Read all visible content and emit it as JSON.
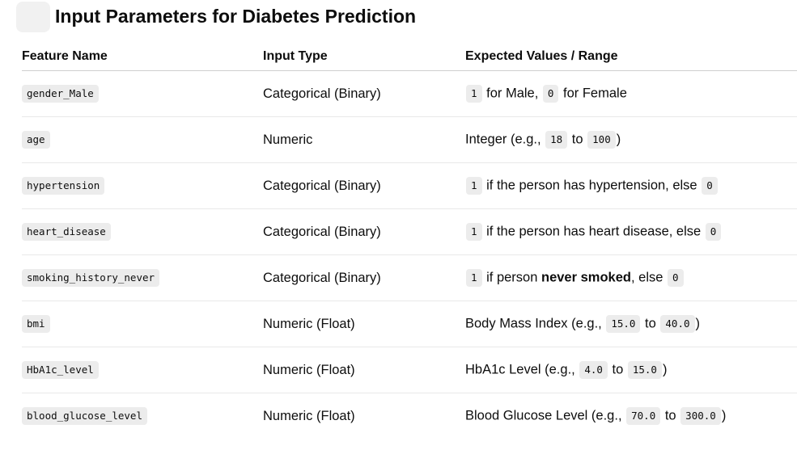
{
  "title": "Input Parameters for Diabetes Prediction",
  "headers": [
    "Feature Name",
    "Input Type",
    "Expected Values / Range"
  ],
  "rows": [
    {
      "feature": "gender_Male",
      "type": "Categorical (Binary)",
      "v": {
        "c1": "1",
        "t1": " for Male, ",
        "c2": "0",
        "t2": " for Female"
      }
    },
    {
      "feature": "age",
      "type": "Numeric",
      "v": {
        "t0": "Integer (e.g., ",
        "c1": "18",
        "t1": " to ",
        "c2": "100",
        "t2": ")"
      }
    },
    {
      "feature": "hypertension",
      "type": "Categorical (Binary)",
      "v": {
        "c1": "1",
        "t1": " if the person has hypertension, else ",
        "c2": "0"
      }
    },
    {
      "feature": "heart_disease",
      "type": "Categorical (Binary)",
      "v": {
        "c1": "1",
        "t1": " if the person has heart disease, else ",
        "c2": "0"
      }
    },
    {
      "feature": "smoking_history_never",
      "type": "Categorical (Binary)",
      "v": {
        "c1": "1",
        "t1": " if person ",
        "b1": "never smoked",
        "t2": ", else ",
        "c2": "0"
      }
    },
    {
      "feature": "bmi",
      "type": "Numeric (Float)",
      "v": {
        "t0": "Body Mass Index (e.g., ",
        "c1": "15.0",
        "t1": " to ",
        "c2": "40.0",
        "t2": ")"
      }
    },
    {
      "feature": "HbA1c_level",
      "type": "Numeric (Float)",
      "v": {
        "t0": "HbA1c Level (e.g., ",
        "c1": "4.0",
        "t1": " to ",
        "c2": "15.0",
        "t2": ")"
      }
    },
    {
      "feature": "blood_glucose_level",
      "type": "Numeric (Float)",
      "v": {
        "t0": "Blood Glucose Level (e.g., ",
        "c1": "70.0",
        "t1": " to ",
        "c2": "300.0",
        "t2": ")"
      }
    }
  ]
}
